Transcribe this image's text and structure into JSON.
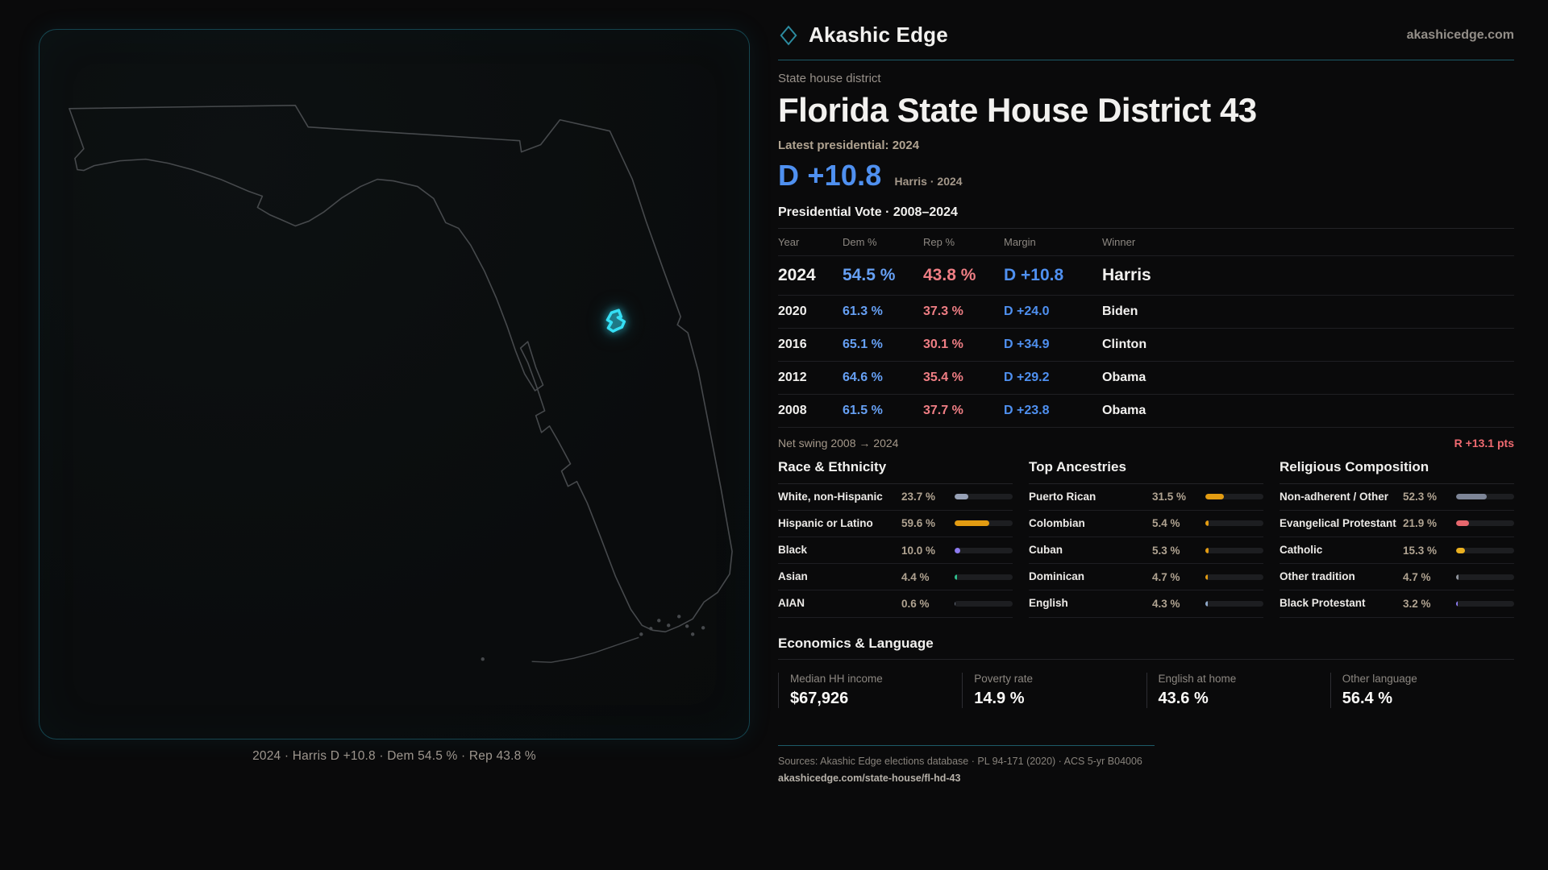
{
  "brand": {
    "name": "Akashic Edge",
    "site": "akashicedge.com",
    "accent": "#35dff5"
  },
  "page": {
    "eyebrow": "State house district",
    "title": "Florida State House District 43",
    "latest_label": "Latest presidential: 2024",
    "margin_value": "D +10.8",
    "margin_context": "Harris · 2024"
  },
  "map": {
    "caption": "2024 · Harris D +10.8 · Dem 54.5 % · Rep 43.8 %",
    "state": "Florida",
    "outline_color": "#46494c",
    "district_color": "#35dff5"
  },
  "presidential_table": {
    "title": "Presidential Vote · 2008–2024",
    "columns": {
      "year": "Year",
      "dem": "Dem %",
      "rep": "Rep %",
      "margin": "Margin",
      "winner": "Winner"
    },
    "rows": [
      {
        "year": "2024",
        "dem": "54.5 %",
        "rep": "43.8 %",
        "margin": "D +10.8",
        "winner": "Harris"
      },
      {
        "year": "2020",
        "dem": "61.3 %",
        "rep": "37.3 %",
        "margin": "D +24.0",
        "winner": "Biden"
      },
      {
        "year": "2016",
        "dem": "65.1 %",
        "rep": "30.1 %",
        "margin": "D +34.9",
        "winner": "Clinton"
      },
      {
        "year": "2012",
        "dem": "64.6 %",
        "rep": "35.4 %",
        "margin": "D +29.2",
        "winner": "Obama"
      },
      {
        "year": "2008",
        "dem": "61.5 %",
        "rep": "37.7 %",
        "margin": "D +23.8",
        "winner": "Obama"
      }
    ]
  },
  "net_swing": {
    "label": "Net swing 2008 → 2024",
    "value": "R +13.1 pts"
  },
  "demographics": {
    "race": {
      "title": "Race & Ethnicity",
      "rows": [
        {
          "label": "White, non-Hispanic",
          "value": "23.7 %",
          "pct": 23.7,
          "color": "#97a1b6"
        },
        {
          "label": "Hispanic or Latino",
          "value": "59.6 %",
          "pct": 59.6,
          "color": "#e39c12"
        },
        {
          "label": "Black",
          "value": "10.0 %",
          "pct": 10.0,
          "color": "#8d7bf0"
        },
        {
          "label": "Asian",
          "value": "4.4 %",
          "pct": 4.4,
          "color": "#2fbf8e"
        },
        {
          "label": "AIAN",
          "value": "0.6 %",
          "pct": 0.6,
          "color": "#6b7280"
        }
      ]
    },
    "ancestries": {
      "title": "Top Ancestries",
      "rows": [
        {
          "label": "Puerto Rican",
          "value": "31.5 %",
          "pct": 31.5,
          "color": "#e39c12"
        },
        {
          "label": "Colombian",
          "value": "5.4 %",
          "pct": 5.4,
          "color": "#e39c12"
        },
        {
          "label": "Cuban",
          "value": "5.3 %",
          "pct": 5.3,
          "color": "#e39c12"
        },
        {
          "label": "Dominican",
          "value": "4.7 %",
          "pct": 4.7,
          "color": "#e39c12"
        },
        {
          "label": "English",
          "value": "4.3 %",
          "pct": 4.3,
          "color": "#8fa8c8"
        }
      ]
    },
    "religion": {
      "title": "Religious Composition",
      "rows": [
        {
          "label": "Non-adherent / Other",
          "value": "52.3 %",
          "pct": 52.3,
          "color": "#7d8597"
        },
        {
          "label": "Evangelical Protestant",
          "value": "21.9 %",
          "pct": 21.9,
          "color": "#e7676d"
        },
        {
          "label": "Catholic",
          "value": "15.3 %",
          "pct": 15.3,
          "color": "#eab020"
        },
        {
          "label": "Other tradition",
          "value": "4.7 %",
          "pct": 4.7,
          "color": "#8f949c"
        },
        {
          "label": "Black Protestant",
          "value": "3.2 %",
          "pct": 3.2,
          "color": "#8d7bf0"
        }
      ]
    }
  },
  "economics": {
    "title": "Economics & Language",
    "stats": [
      {
        "label": "Median HH income",
        "value": "$67,926"
      },
      {
        "label": "Poverty rate",
        "value": "14.9 %"
      },
      {
        "label": "English at home",
        "value": "43.6 %"
      },
      {
        "label": "Other language",
        "value": "56.4 %"
      }
    ]
  },
  "footer": {
    "sources": "Sources: Akashic Edge elections database · PL 94-171 (2020) · ACS 5-yr B04006",
    "permalink": "akashicedge.com/state-house/fl-hd-43"
  },
  "chart_data": [
    {
      "type": "table",
      "title": "Presidential Vote · 2008–2024",
      "categories": [
        2024,
        2020,
        2016,
        2012,
        2008
      ],
      "series": [
        {
          "name": "Dem %",
          "values": [
            54.5,
            61.3,
            65.1,
            64.6,
            61.5
          ]
        },
        {
          "name": "Rep %",
          "values": [
            43.8,
            37.3,
            30.1,
            35.4,
            37.7
          ]
        },
        {
          "name": "Margin",
          "values": [
            10.8,
            24.0,
            34.9,
            29.2,
            23.8
          ]
        },
        {
          "name": "Winner",
          "values": [
            "Harris",
            "Biden",
            "Clinton",
            "Obama",
            "Obama"
          ]
        }
      ],
      "annotations": [
        "Net swing 2008 → 2024: R +13.1 pts"
      ]
    },
    {
      "type": "bar",
      "title": "Race & Ethnicity",
      "categories": [
        "White, non-Hispanic",
        "Hispanic or Latino",
        "Black",
        "Asian",
        "AIAN"
      ],
      "values": [
        23.7,
        59.6,
        10.0,
        4.4,
        0.6
      ],
      "xlabel": "",
      "ylabel": "%",
      "ylim": [
        0,
        100
      ]
    },
    {
      "type": "bar",
      "title": "Top Ancestries",
      "categories": [
        "Puerto Rican",
        "Colombian",
        "Cuban",
        "Dominican",
        "English"
      ],
      "values": [
        31.5,
        5.4,
        5.3,
        4.7,
        4.3
      ],
      "xlabel": "",
      "ylabel": "%",
      "ylim": [
        0,
        100
      ]
    },
    {
      "type": "bar",
      "title": "Religious Composition",
      "categories": [
        "Non-adherent / Other",
        "Evangelical Protestant",
        "Catholic",
        "Other tradition",
        "Black Protestant"
      ],
      "values": [
        52.3,
        21.9,
        15.3,
        4.7,
        3.2
      ],
      "xlabel": "",
      "ylabel": "%",
      "ylim": [
        0,
        100
      ]
    }
  ]
}
